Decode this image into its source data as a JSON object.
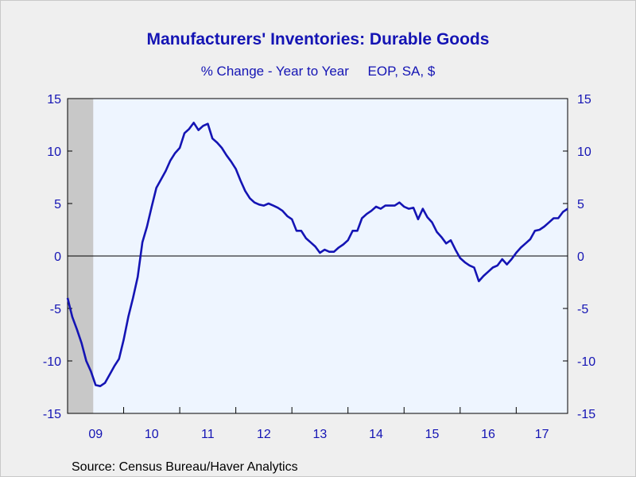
{
  "title": "Manufacturers' Inventories: Durable Goods",
  "subtitle": "% Change - Year to Year     EOP, SA, $",
  "source": "Source:  Census Bureau/Haver Analytics",
  "colors": {
    "line": "#1414b4",
    "plot_bg": "#eef5ff",
    "recession": "#c8c8c8",
    "text": "#1414b4"
  },
  "chart_data": {
    "type": "line",
    "title": "Manufacturers' Inventories: Durable Goods",
    "subtitle": "% Change - Year to Year     EOP, SA, $",
    "ylim": [
      -15,
      15
    ],
    "y_ticks": [
      15,
      10,
      5,
      0,
      -5,
      -10,
      -15
    ],
    "x_tick_labels": [
      "09",
      "10",
      "11",
      "12",
      "13",
      "14",
      "15",
      "16",
      "17"
    ],
    "x_range": [
      "2009-01",
      "2017-12"
    ],
    "recession_shading": [
      "2009-01",
      "2009-06"
    ],
    "zero_line": true,
    "grid": false,
    "series": [
      {
        "x": [
          "2009-01",
          "2009-02",
          "2009-03",
          "2009-04",
          "2009-05",
          "2009-06",
          "2009-07",
          "2009-08",
          "2009-09",
          "2009-10",
          "2009-11",
          "2009-12",
          "2010-01",
          "2010-02",
          "2010-03",
          "2010-04",
          "2010-05",
          "2010-06",
          "2010-07",
          "2010-08",
          "2010-09",
          "2010-10",
          "2010-11",
          "2010-12",
          "2011-01",
          "2011-02",
          "2011-03",
          "2011-04",
          "2011-05",
          "2011-06",
          "2011-07",
          "2011-08",
          "2011-09",
          "2011-10",
          "2011-11",
          "2011-12",
          "2012-01",
          "2012-02",
          "2012-03",
          "2012-04",
          "2012-05",
          "2012-06",
          "2012-07",
          "2012-08",
          "2012-09",
          "2012-10",
          "2012-11",
          "2012-12",
          "2013-01",
          "2013-02",
          "2013-03",
          "2013-04",
          "2013-05",
          "2013-06",
          "2013-07",
          "2013-08",
          "2013-09",
          "2013-10",
          "2013-11",
          "2013-12",
          "2014-01",
          "2014-02",
          "2014-03",
          "2014-04",
          "2014-05",
          "2014-06",
          "2014-07",
          "2014-08",
          "2014-09",
          "2014-10",
          "2014-11",
          "2014-12",
          "2015-01",
          "2015-02",
          "2015-03",
          "2015-04",
          "2015-05",
          "2015-06",
          "2015-07",
          "2015-08",
          "2015-09",
          "2015-10",
          "2015-11",
          "2015-12",
          "2016-01",
          "2016-02",
          "2016-03",
          "2016-04",
          "2016-05",
          "2016-06",
          "2016-07",
          "2016-08",
          "2016-09",
          "2016-10",
          "2016-11",
          "2016-12",
          "2017-01",
          "2017-02",
          "2017-03",
          "2017-04",
          "2017-05",
          "2017-06",
          "2017-07",
          "2017-08",
          "2017-09",
          "2017-10",
          "2017-11",
          "2017-12"
        ],
        "values": [
          -4.0,
          -5.8,
          -7.0,
          -8.3,
          -10.0,
          -11.0,
          -12.3,
          -12.4,
          -12.1,
          -11.3,
          -10.5,
          -9.8,
          -8.0,
          -5.8,
          -4.0,
          -2.0,
          1.3,
          2.8,
          4.7,
          6.5,
          7.3,
          8.1,
          9.1,
          9.8,
          10.3,
          11.7,
          12.1,
          12.7,
          12.0,
          12.4,
          12.6,
          11.2,
          10.8,
          10.3,
          9.6,
          9.0,
          8.3,
          7.2,
          6.2,
          5.5,
          5.1,
          4.9,
          4.8,
          5.0,
          4.8,
          4.6,
          4.3,
          3.8,
          3.5,
          2.4,
          2.4,
          1.7,
          1.3,
          0.9,
          0.3,
          0.6,
          0.4,
          0.4,
          0.8,
          1.1,
          1.5,
          2.4,
          2.4,
          3.6,
          4.0,
          4.3,
          4.7,
          4.5,
          4.8,
          4.8,
          4.8,
          5.1,
          4.7,
          4.5,
          4.6,
          3.5,
          4.5,
          3.7,
          3.2,
          2.3,
          1.8,
          1.2,
          1.5,
          0.6,
          -0.2,
          -0.6,
          -0.9,
          -1.1,
          -2.4,
          -1.9,
          -1.5,
          -1.1,
          -0.9,
          -0.3,
          -0.8,
          -0.3,
          0.3,
          0.8,
          1.2,
          1.6,
          2.4,
          2.5,
          2.8,
          3.2,
          3.6,
          3.6,
          4.2,
          4.5
        ]
      }
    ]
  }
}
